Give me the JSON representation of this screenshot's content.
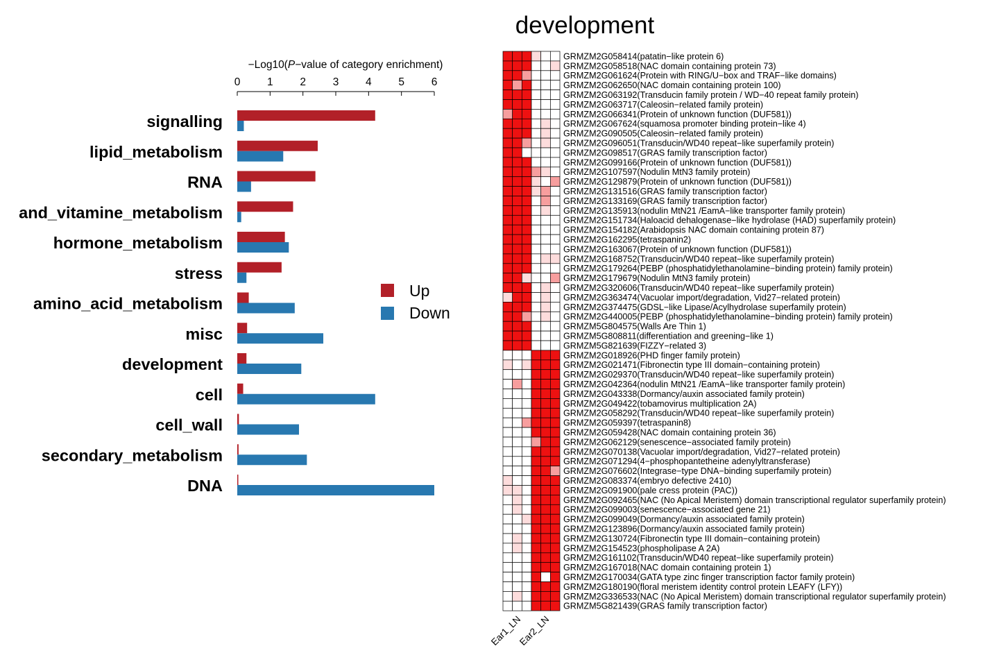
{
  "colors": {
    "up": "#B22028",
    "down": "#2878B0",
    "heat_high": "#EE1111",
    "heat_mid": "#F79E9E",
    "heat_low": "#FDDCDC",
    "heat_none": "#FFFFFF"
  },
  "chart_data": [
    {
      "type": "bar",
      "orientation": "horizontal",
      "axis_title_parts": [
        "−Log10(",
        "P",
        "−value of category enrichment)"
      ],
      "xlim": [
        0,
        6
      ],
      "ticks": [
        "0",
        "1",
        "2",
        "3",
        "4",
        "5",
        "6"
      ],
      "categories": [
        "signalling",
        "lipid_metabolism",
        "RNA",
        "and_vitamine_metabolism",
        "hormone_metabolism",
        "stress",
        "amino_acid_metabolism",
        "misc",
        "development",
        "cell",
        "cell_wall",
        "secondary_metabolism",
        "DNA"
      ],
      "series": [
        {
          "name": "Up",
          "values": [
            4.2,
            2.45,
            2.38,
            1.7,
            1.45,
            1.35,
            0.35,
            0.3,
            0.28,
            0.18,
            0.05,
            0.04,
            0.02
          ]
        },
        {
          "name": "Down",
          "values": [
            0.2,
            1.4,
            0.42,
            0.12,
            1.57,
            0.28,
            1.75,
            2.62,
            1.95,
            4.2,
            1.88,
            2.12,
            6.0
          ]
        }
      ],
      "legend_position": "right"
    },
    {
      "type": "heatmap",
      "title": "development",
      "columns": [
        "Ear1_LN",
        "",
        "",
        "Ear2_LN",
        "",
        ""
      ],
      "column_labels": [
        "Ear1_LN",
        "Ear2_LN"
      ],
      "rows": [
        "GRMZM2G058414(patatin−like protein 6)",
        "GRMZM2G058518(NAC domain containing protein 73)",
        "GRMZM2G061624(Protein with RING/U−box and TRAF−like domains)",
        "GRMZM2G062650(NAC domain containing protein 100)",
        "GRMZM2G063192(Transducin family protein / WD−40 repeat family protein)",
        "GRMZM2G063717(Caleosin−related family protein)",
        "GRMZM2G066341(Protein of unknown function (DUF581))",
        "GRMZM2G067624(squamosa promoter binding protein−like 4)",
        "GRMZM2G090505(Caleosin−related family protein)",
        "GRMZM2G096051(Transducin/WD40 repeat−like superfamily protein)",
        "GRMZM2G098517(GRAS family transcription factor)",
        "GRMZM2G099166(Protein of unknown function (DUF581))",
        "GRMZM2G107597(Nodulin MtN3 family protein)",
        "GRMZM2G129879(Protein of unknown function (DUF581))",
        "GRMZM2G131516(GRAS family transcription factor)",
        "GRMZM2G133169(GRAS family transcription factor)",
        "GRMZM2G135913(nodulin MtN21 /EamA−like transporter family protein)",
        "GRMZM2G151734(Haloacid dehalogenase−like hydrolase (HAD) superfamily protein)",
        "GRMZM2G154182(Arabidopsis NAC domain containing protein 87)",
        "GRMZM2G162295(tetraspanin2)",
        "GRMZM2G163067(Protein of unknown function (DUF581))",
        "GRMZM2G168752(Transducin/WD40 repeat−like superfamily protein)",
        "GRMZM2G179264(PEBP (phosphatidylethanolamine−binding protein) family protein)",
        "GRMZM2G179679(Nodulin MtN3 family protein)",
        "GRMZM2G320606(Transducin/WD40 repeat−like superfamily protein)",
        "GRMZM2G363474(Vacuolar import/degradation, Vid27−related protein)",
        "GRMZM2G374475(GDSL−like Lipase/Acylhydrolase superfamily protein)",
        "GRMZM2G440005(PEBP (phosphatidylethanolamine−binding protein) family protein)",
        "GRMZM5G804575(Walls Are Thin 1)",
        "GRMZM5G808811(differentiation and greening−like 1)",
        "GRMZM5G821639(FIZZY−related 3)",
        "GRMZM2G018926(PHD finger family protein)",
        "GRMZM2G021471(Fibronectin type III domain−containing protein)",
        "GRMZM2G029370(Transducin/WD40 repeat−like superfamily protein)",
        "GRMZM2G042364(nodulin MtN21 /EamA−like transporter family protein)",
        "GRMZM2G043338(Dormancy/auxin associated family protein)",
        "GRMZM2G049422(tobamovirus multiplication 2A)",
        "GRMZM2G058292(Transducin/WD40 repeat−like superfamily protein)",
        "GRMZM2G059397(tetraspanin8)",
        "GRMZM2G059428(NAC domain containing protein 36)",
        "GRMZM2G062129(senescence−associated family protein)",
        "GRMZM2G070138(Vacuolar import/degradation, Vid27−related protein)",
        "GRMZM2G071294(4−phosphopantetheine adenylyltransferase)",
        "GRMZM2G076602(Integrase−type DNA−binding superfamily protein)",
        "GRMZM2G083374(embryo defective 2410)",
        "GRMZM2G091900(pale cress protein (PAC))",
        "GRMZM2G092465(NAC (No Apical Meristem) domain transcriptional regulator superfamily protein)",
        "GRMZM2G099003(senescence−associated gene 21)",
        "GRMZM2G099049(Dormancy/auxin associated family protein)",
        "GRMZM2G123896(Dormancy/auxin associated family protein)",
        "GRMZM2G130724(Fibronectin type III domain−containing protein)",
        "GRMZM2G154523(phospholipase A 2A)",
        "GRMZM2G161102(Transducin/WD40 repeat−like superfamily protein)",
        "GRMZM2G167018(NAC domain containing protein 1)",
        "GRMZM2G170034(GATA type zinc finger transcription factor family protein)",
        "GRMZM2G180190(floral meristem identity control protein LEAFY (LFY))",
        "GRMZM2G336533(NAC (No Apical Meristem) domain transcriptional regulator superfamily protein)",
        "GRMZM5G821439(GRAS family transcription factor)"
      ],
      "values": [
        [
          3,
          3,
          3,
          1,
          0,
          0
        ],
        [
          3,
          3,
          3,
          0,
          0,
          1
        ],
        [
          3,
          3,
          2,
          0,
          0,
          0
        ],
        [
          3,
          2,
          3,
          0,
          0,
          0
        ],
        [
          3,
          3,
          3,
          0,
          0,
          0
        ],
        [
          3,
          3,
          3,
          0,
          0,
          0
        ],
        [
          2,
          3,
          3,
          0,
          0,
          0
        ],
        [
          3,
          3,
          3,
          0,
          1,
          0
        ],
        [
          3,
          3,
          3,
          0,
          1,
          0
        ],
        [
          3,
          3,
          2,
          0,
          1,
          0
        ],
        [
          3,
          3,
          0,
          0,
          0,
          0
        ],
        [
          3,
          3,
          3,
          0,
          0,
          0
        ],
        [
          3,
          3,
          3,
          2,
          1,
          0
        ],
        [
          3,
          3,
          3,
          1,
          0,
          2
        ],
        [
          3,
          3,
          3,
          1,
          2,
          0
        ],
        [
          3,
          3,
          3,
          0,
          2,
          0
        ],
        [
          3,
          3,
          3,
          0,
          1,
          0
        ],
        [
          3,
          3,
          3,
          0,
          0,
          0
        ],
        [
          3,
          3,
          3,
          0,
          0,
          0
        ],
        [
          3,
          3,
          3,
          0,
          0,
          0
        ],
        [
          3,
          3,
          3,
          0,
          0,
          0
        ],
        [
          3,
          3,
          3,
          0,
          1,
          1
        ],
        [
          3,
          3,
          3,
          0,
          0,
          0
        ],
        [
          3,
          3,
          1,
          0,
          0,
          2
        ],
        [
          3,
          3,
          3,
          0,
          1,
          0
        ],
        [
          1,
          3,
          3,
          0,
          1,
          0
        ],
        [
          3,
          3,
          3,
          0,
          1,
          0
        ],
        [
          3,
          3,
          2,
          0,
          1,
          0
        ],
        [
          3,
          3,
          3,
          0,
          0,
          0
        ],
        [
          3,
          3,
          3,
          0,
          0,
          0
        ],
        [
          3,
          3,
          3,
          0,
          0,
          0
        ],
        [
          0,
          0,
          0,
          3,
          3,
          3
        ],
        [
          1,
          0,
          1,
          3,
          3,
          3
        ],
        [
          0,
          0,
          0,
          3,
          3,
          3
        ],
        [
          0,
          2,
          0,
          3,
          3,
          3
        ],
        [
          0,
          0,
          0,
          3,
          3,
          3
        ],
        [
          0,
          0,
          0,
          3,
          3,
          3
        ],
        [
          0,
          0,
          0,
          3,
          3,
          3
        ],
        [
          0,
          0,
          2,
          3,
          3,
          3
        ],
        [
          0,
          0,
          0,
          3,
          3,
          3
        ],
        [
          0,
          0,
          0,
          2,
          3,
          3
        ],
        [
          0,
          0,
          0,
          3,
          3,
          3
        ],
        [
          0,
          0,
          0,
          3,
          3,
          3
        ],
        [
          0,
          0,
          0,
          3,
          3,
          2
        ],
        [
          1,
          0,
          0,
          3,
          3,
          3
        ],
        [
          1,
          1,
          0,
          3,
          3,
          3
        ],
        [
          0,
          1,
          0,
          3,
          3,
          3
        ],
        [
          0,
          1,
          0,
          3,
          3,
          3
        ],
        [
          0,
          0,
          1,
          3,
          3,
          3
        ],
        [
          0,
          0,
          0,
          3,
          3,
          3
        ],
        [
          0,
          1,
          0,
          3,
          3,
          3
        ],
        [
          0,
          1,
          0,
          3,
          3,
          3
        ],
        [
          0,
          0,
          0,
          3,
          3,
          3
        ],
        [
          0,
          0,
          0,
          3,
          3,
          3
        ],
        [
          0,
          0,
          0,
          3,
          0,
          3
        ],
        [
          0,
          0,
          0,
          3,
          3,
          3
        ],
        [
          0,
          1,
          0,
          3,
          3,
          3
        ],
        [
          0,
          0,
          0,
          3,
          3,
          3
        ]
      ]
    }
  ]
}
